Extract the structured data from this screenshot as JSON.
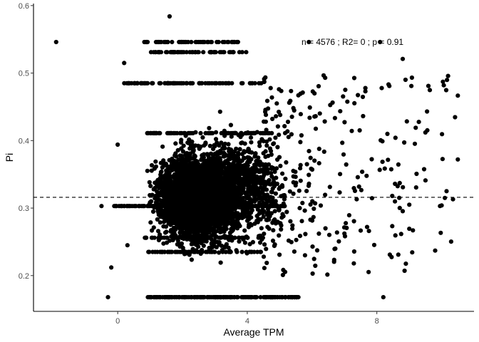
{
  "chart_data": {
    "type": "scatter",
    "title": "",
    "xlabel": "Average TPM",
    "ylabel": "Pi",
    "xlim": [
      -2.6,
      11.0
    ],
    "ylim": [
      0.147,
      0.603
    ],
    "xticks": [
      0,
      4,
      8
    ],
    "xtick_labels": [
      "0",
      "4",
      "8"
    ],
    "yticks": [
      0.2,
      0.3,
      0.4,
      0.5,
      0.6
    ],
    "ytick_labels": [
      "0.2",
      "0.3",
      "0.4",
      "0.5",
      "0.6"
    ],
    "grid": false,
    "legend": "none",
    "hline": {
      "y": 0.316,
      "style": "dashed"
    },
    "annotation": "n = 4576 ; R2= 0 ; p = 0.91",
    "n_points": 4576,
    "point_color": "#000000",
    "points": [
      {
        "x": -1.9,
        "y": 0.546
      },
      {
        "x": 1.6,
        "y": 0.584
      },
      {
        "x": 5.9,
        "y": 0.546
      },
      {
        "x": 8.1,
        "y": 0.546
      },
      {
        "x": 8.8,
        "y": 0.521
      },
      {
        "x": 9.2,
        "y": 0.419
      },
      {
        "x": 9.5,
        "y": 0.412
      },
      {
        "x": 10.5,
        "y": 0.372
      },
      {
        "x": 10.1,
        "y": 0.315
      },
      {
        "x": 10.0,
        "y": 0.304
      },
      {
        "x": 9.8,
        "y": 0.237
      },
      {
        "x": 8.4,
        "y": 0.231
      },
      {
        "x": 8.2,
        "y": 0.168
      },
      {
        "x": 7.7,
        "y": 0.272
      },
      {
        "x": -0.5,
        "y": 0.303
      },
      {
        "x": -0.2,
        "y": 0.212
      },
      {
        "x": -0.3,
        "y": 0.168
      },
      {
        "x": 0.0,
        "y": 0.394
      },
      {
        "x": 0.2,
        "y": 0.515
      },
      {
        "x": 0.3,
        "y": 0.245
      }
    ],
    "dense_regions": [
      {
        "x_center": 2.4,
        "x_spread": 0.95,
        "y_center": 0.315,
        "y_spread": 0.055,
        "count": 2900
      },
      {
        "x_center": 3.6,
        "x_spread": 1.3,
        "y_center": 0.33,
        "y_spread": 0.065,
        "count": 1100
      }
    ],
    "horizontal_bands": [
      {
        "y": 0.168,
        "x_range": [
          0.9,
          5.6
        ],
        "count": 190
      },
      {
        "y": 0.303,
        "x_range": [
          -0.2,
          5.2
        ],
        "count": 160
      },
      {
        "y": 0.485,
        "x_range": [
          0.2,
          4.5
        ],
        "count": 90
      },
      {
        "y": 0.531,
        "x_range": [
          1.0,
          4.0
        ],
        "count": 60
      },
      {
        "y": 0.546,
        "x_range": [
          0.8,
          3.9
        ],
        "count": 55
      },
      {
        "y": 0.411,
        "x_range": [
          0.9,
          4.8
        ],
        "count": 70
      },
      {
        "y": 0.235,
        "x_range": [
          0.8,
          4.5
        ],
        "count": 60
      },
      {
        "y": 0.256,
        "x_range": [
          0.8,
          4.5
        ],
        "count": 60
      }
    ]
  }
}
